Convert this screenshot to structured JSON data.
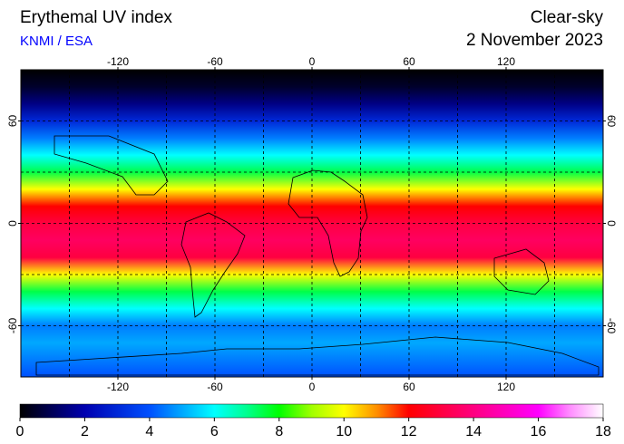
{
  "title": "Erythemal UV index",
  "source": "KNMI / ESA",
  "mode": "Clear-sky",
  "date": "2 November 2023",
  "map": {
    "xlim": [
      -180,
      180
    ],
    "ylim": [
      -90,
      90
    ],
    "xticks": [
      -120,
      -60,
      0,
      60,
      120
    ],
    "yticks": [
      -60,
      0,
      60
    ],
    "grid_lon": [
      -150,
      -120,
      -90,
      -60,
      -30,
      0,
      30,
      60,
      90,
      120,
      150
    ],
    "grid_lat": [
      -60,
      -30,
      0,
      30,
      60
    ],
    "grid_color": "#000000",
    "field": {
      "lat": [
        90,
        80,
        70,
        60,
        50,
        40,
        30,
        20,
        10,
        0,
        -10,
        -20,
        -30,
        -40,
        -50,
        -60,
        -70,
        -80,
        -90
      ],
      "values": [
        0,
        0.5,
        1.5,
        3,
        4.5,
        6,
        7.5,
        10,
        12,
        13,
        13.5,
        13,
        10,
        7.5,
        6,
        4.5,
        5,
        4.5,
        4
      ]
    }
  },
  "colorbar": {
    "lim": [
      0,
      18
    ],
    "ticks": [
      0,
      2,
      4,
      6,
      8,
      10,
      12,
      14,
      16,
      18
    ],
    "stops": [
      {
        "value": 0,
        "color": "#000000"
      },
      {
        "value": 2,
        "color": "#0000b0"
      },
      {
        "value": 4,
        "color": "#0050ff"
      },
      {
        "value": 6,
        "color": "#00ffff"
      },
      {
        "value": 7,
        "color": "#00ff90"
      },
      {
        "value": 8,
        "color": "#00ff00"
      },
      {
        "value": 9,
        "color": "#a0ff00"
      },
      {
        "value": 10,
        "color": "#ffff00"
      },
      {
        "value": 11,
        "color": "#ff9000"
      },
      {
        "value": 12,
        "color": "#ff0000"
      },
      {
        "value": 14,
        "color": "#ff0080"
      },
      {
        "value": 16,
        "color": "#ff00ff"
      },
      {
        "value": 17,
        "color": "#ff90ff"
      },
      {
        "value": 18,
        "color": "#ffffff"
      }
    ]
  }
}
